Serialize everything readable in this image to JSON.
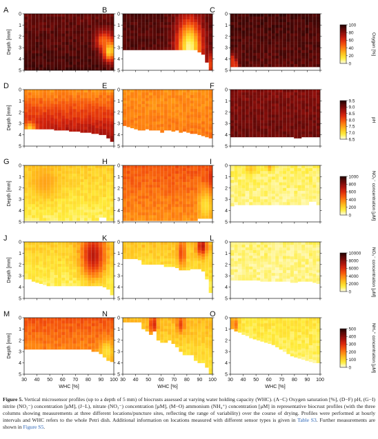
{
  "figure": {
    "caption": {
      "lead": "Figure 5.",
      "body": "Vertical microsensor profiles (up to a depth of 5 mm) of biocrusts assessed at varying water holding capacity (WHC). (A−C) Oxygen saturation [%], (D−F) pH, (G−I) nitrite (NO₂⁻) concentration [μM], (J−L), nitrate (NO₃⁻) concentration [μM], (M−O) ammonium (NH₄⁺) concentration [μM] in representative biocrust profiles (with the three columns showing measurements at three different locations/puncture sites, reflecting the range of variability) over the course of drying. Profiles were performed at hourly intervals and WHC refers to the whole Petri dish. Additional information on locations measured with different sensor types is given in",
      "ref1": "Table S3",
      "mid": ". Further measurements are shown in",
      "ref2": "Figure S5",
      "end": "."
    },
    "colors": {
      "colormap": [
        "#fffde0",
        "#ffec3c",
        "#ffc21e",
        "#ff8a12",
        "#f4520c",
        "#d8260c",
        "#a4120c",
        "#6a0a08",
        "#2c0403"
      ],
      "grid": "#ffffff"
    }
  },
  "chart_data": [
    {
      "panel": "A",
      "type": "heatmap",
      "variable": "oxygen",
      "xlabel": "",
      "ylabel": "Depth [mm]",
      "xlim": [
        30,
        100
      ],
      "ylim": [
        0,
        5
      ],
      "grid": true,
      "x": [
        30,
        33,
        36,
        39,
        42,
        45,
        48,
        51,
        54,
        57,
        60,
        63,
        66,
        69,
        72,
        75,
        78,
        81,
        84,
        87,
        90,
        93,
        96,
        99
      ],
      "depth_extent_mm": [
        5,
        5,
        5,
        5,
        5,
        5,
        5,
        5,
        5,
        5,
        5,
        5,
        5,
        5,
        5,
        5,
        5,
        5,
        5,
        5,
        5,
        5,
        5,
        5
      ],
      "level_surface": 0.88,
      "level_deep": 0.95,
      "level_min": 0,
      "hotspots": [
        {
          "x": 97,
          "depth": 3.2,
          "level": 0.1,
          "rx": 5,
          "ry": 1.0
        },
        {
          "x": 92,
          "depth": 2.4,
          "level": 0.45,
          "rx": 6,
          "ry": 0.8
        }
      ]
    },
    {
      "panel": "B",
      "type": "heatmap",
      "variable": "oxygen",
      "xlabel": "",
      "ylabel": "",
      "xlim": [
        30,
        100
      ],
      "ylim": [
        0,
        5
      ],
      "grid": true,
      "x": [
        30,
        33,
        36,
        39,
        42,
        45,
        48,
        51,
        54,
        57,
        60,
        63,
        66,
        69,
        72,
        75,
        78,
        81,
        84,
        87,
        90,
        93,
        96,
        99
      ],
      "depth_extent_mm": [
        3.2,
        3.2,
        3.2,
        3.2,
        3.2,
        3.2,
        3.2,
        3.2,
        3.2,
        3.2,
        3.2,
        3.2,
        3.2,
        3.2,
        3.2,
        3.2,
        3.2,
        3.2,
        3.2,
        3.2,
        3.4,
        3.6,
        4.3,
        5.0
      ],
      "level_surface": 0.92,
      "level_deep": 0.92,
      "level_min": 0,
      "hotspots": [
        {
          "x": 82,
          "depth": 3.0,
          "level": 0.05,
          "rx": 10,
          "ry": 2.5
        },
        {
          "x": 99,
          "depth": 4.5,
          "level": 0.55,
          "rx": 3,
          "ry": 1.0
        }
      ]
    },
    {
      "panel": "C",
      "type": "heatmap",
      "variable": "oxygen",
      "xlabel": "",
      "ylabel": "",
      "xlim": [
        30,
        100
      ],
      "ylim": [
        0,
        5
      ],
      "grid": true,
      "x": [
        30,
        33,
        36,
        39,
        42,
        45,
        48,
        51,
        54,
        57,
        60,
        63,
        66,
        69,
        72,
        75,
        78,
        81,
        84,
        87,
        90,
        93,
        96,
        99
      ],
      "depth_extent_mm": [
        4.7,
        4.7,
        4.7,
        4.7,
        4.7,
        4.7,
        4.7,
        4.7,
        4.7,
        4.7,
        4.7,
        4.7,
        4.7,
        4.7,
        4.7,
        4.7,
        4.7,
        4.7,
        4.7,
        4.7,
        4.7,
        4.7,
        4.7,
        4.7
      ],
      "level_surface": 0.95,
      "level_deep": 0.9,
      "level_min": 0.6,
      "hotspots": [
        {
          "x": 30,
          "depth": 4.7,
          "level": 0.05,
          "rx": 3,
          "ry": 0.8
        }
      ]
    },
    {
      "panel": "D",
      "type": "heatmap",
      "variable": "pH",
      "xlabel": "",
      "ylabel": "Depth [mm]",
      "xlim": [
        30,
        100
      ],
      "ylim": [
        0,
        5
      ],
      "grid": true,
      "x": [
        30,
        33,
        36,
        39,
        42,
        45,
        48,
        51,
        54,
        57,
        60,
        63,
        66,
        69,
        72,
        75,
        78,
        81,
        84,
        87,
        90,
        93,
        96,
        99
      ],
      "depth_extent_mm": [
        3.5,
        3.5,
        3.5,
        3.5,
        3.5,
        3.5,
        3.5,
        3.5,
        3.6,
        3.6,
        3.6,
        3.6,
        3.7,
        3.7,
        3.7,
        3.8,
        3.8,
        3.8,
        3.9,
        3.9,
        4.0,
        4.0,
        4.3,
        4.6
      ],
      "level_surface": 0.35,
      "level_deep": 0.85,
      "level_min": 0,
      "hotspots": [
        {
          "x": 33,
          "depth": 3.4,
          "level": 0.22,
          "rx": 5,
          "ry": 0.5
        }
      ]
    },
    {
      "panel": "E",
      "type": "heatmap",
      "variable": "pH",
      "xlabel": "",
      "ylabel": "",
      "xlim": [
        30,
        100
      ],
      "ylim": [
        0,
        5
      ],
      "grid": true,
      "x": [
        30,
        33,
        36,
        39,
        42,
        45,
        48,
        51,
        54,
        57,
        60,
        63,
        66,
        69,
        72,
        75,
        78,
        81,
        84,
        87,
        90,
        93,
        96,
        99
      ],
      "depth_extent_mm": [
        3.2,
        3.3,
        3.4,
        3.5,
        3.6,
        3.6,
        3.5,
        3.6,
        3.6,
        3.6,
        3.8,
        3.6,
        3.6,
        3.7,
        3.6,
        3.8,
        3.7,
        3.8,
        3.9,
        3.9,
        4.0,
        4.1,
        4.2,
        4.3
      ],
      "level_surface": 0.36,
      "level_deep": 0.42,
      "level_min": 0.15,
      "hotspots": []
    },
    {
      "panel": "F",
      "type": "heatmap",
      "variable": "pH",
      "xlabel": "",
      "ylabel": "",
      "xlim": [
        30,
        100
      ],
      "ylim": [
        0,
        5
      ],
      "grid": true,
      "x": [
        30,
        33,
        36,
        39,
        42,
        45,
        48,
        51,
        54,
        57,
        60,
        63,
        66,
        69,
        72,
        75,
        78,
        81,
        84,
        87,
        90,
        93,
        96,
        99
      ],
      "depth_extent_mm": [
        4.2,
        4.2,
        4.2,
        4.2,
        4.2,
        4.2,
        4.2,
        4.2,
        4.2,
        4.2,
        4.2,
        4.2,
        4.2,
        4.2,
        4.2,
        4.2,
        4.2,
        4.3,
        4.3,
        4.2,
        4.2,
        4.2,
        4.2,
        4.2
      ],
      "level_surface": 0.82,
      "level_deep": 0.88,
      "level_min": 0.6,
      "hotspots": []
    },
    {
      "panel": "G",
      "type": "heatmap",
      "variable": "nitrite",
      "xlabel": "",
      "ylabel": "Depth [mm]",
      "xlim": [
        30,
        100
      ],
      "ylim": [
        0,
        5
      ],
      "grid": true,
      "x": [
        30,
        33,
        36,
        39,
        42,
        45,
        48,
        51,
        54,
        57,
        60,
        63,
        66,
        69,
        72,
        75,
        78,
        81,
        84,
        87,
        90,
        93,
        96,
        99
      ],
      "depth_extent_mm": [
        4.9,
        4.9,
        4.9,
        4.9,
        4.9,
        4.9,
        4.9,
        4.9,
        4.9,
        4.9,
        4.9,
        4.9,
        4.9,
        4.9,
        4.9,
        4.9,
        4.9,
        4.9,
        4.9,
        4.9,
        4.6,
        4.6,
        4.9,
        4.9
      ],
      "level_surface": 0.22,
      "level_deep": 0.1,
      "level_min": 0,
      "hotspots": [
        {
          "x": 45,
          "depth": 1.5,
          "level": 0.32,
          "rx": 12,
          "ry": 1.5
        }
      ]
    },
    {
      "panel": "H",
      "type": "heatmap",
      "variable": "nitrite",
      "xlabel": "",
      "ylabel": "",
      "xlim": [
        30,
        100
      ],
      "ylim": [
        0,
        5
      ],
      "grid": true,
      "x": [
        30,
        33,
        36,
        39,
        42,
        45,
        48,
        51,
        54,
        57,
        60,
        63,
        66,
        69,
        72,
        75,
        78,
        81,
        84,
        87,
        90,
        93,
        96,
        99
      ],
      "depth_extent_mm": [
        4.9,
        4.9,
        4.9,
        4.9,
        4.9,
        4.9,
        4.9,
        4.9,
        4.9,
        4.9,
        4.9,
        4.9,
        4.9,
        4.9,
        4.9,
        4.9,
        4.9,
        4.9,
        4.9,
        4.9,
        4.7,
        4.7,
        4.7,
        4.7
      ],
      "level_surface": 0.5,
      "level_deep": 0.36,
      "level_min": 0.1,
      "hotspots": [
        {
          "x": 95,
          "depth": 3.5,
          "level": 0.15,
          "rx": 6,
          "ry": 1.2
        },
        {
          "x": 99,
          "depth": 1.0,
          "level": 0.6,
          "rx": 2,
          "ry": 0.8
        }
      ]
    },
    {
      "panel": "I",
      "type": "heatmap",
      "variable": "nitrite",
      "xlabel": "",
      "ylabel": "",
      "xlim": [
        30,
        100
      ],
      "ylim": [
        0,
        5
      ],
      "grid": true,
      "x": [
        30,
        33,
        36,
        39,
        42,
        45,
        48,
        51,
        54,
        57,
        60,
        63,
        66,
        69,
        72,
        75,
        78,
        81,
        84,
        87,
        90,
        93,
        96,
        99
      ],
      "depth_extent_mm": [
        3.6,
        3.5,
        3.5,
        3.5,
        3.5,
        3.5,
        3.5,
        3.5,
        3.5,
        3.5,
        3.5,
        3.5,
        3.5,
        3.5,
        3.5,
        3.5,
        3.5,
        3.5,
        3.5,
        3.5,
        3.5,
        3.2,
        3.2,
        3.5
      ],
      "level_surface": 0.1,
      "level_deep": 0.05,
      "level_min": 0,
      "hotspots": [
        {
          "x": 45,
          "depth": 0.3,
          "level": 0.25,
          "rx": 5,
          "ry": 0.5
        },
        {
          "x": 60,
          "depth": 0.2,
          "level": 0.3,
          "rx": 3,
          "ry": 0.3
        }
      ]
    },
    {
      "panel": "J",
      "type": "heatmap",
      "variable": "nitrate",
      "xlabel": "",
      "ylabel": "Depth [mm]",
      "xlim": [
        30,
        100
      ],
      "ylim": [
        0,
        5
      ],
      "grid": true,
      "x": [
        30,
        33,
        36,
        39,
        42,
        45,
        48,
        51,
        54,
        57,
        60,
        63,
        66,
        69,
        72,
        75,
        78,
        81,
        84,
        87,
        90,
        93,
        96,
        99
      ],
      "depth_extent_mm": [
        3.3,
        3.3,
        3.5,
        3.6,
        3.7,
        3.8,
        3.9,
        3.9,
        3.9,
        3.9,
        3.9,
        3.9,
        3.9,
        3.9,
        3.9,
        3.9,
        3.9,
        3.9,
        3.9,
        3.9,
        3.9,
        4.0,
        4.2,
        4.7
      ],
      "level_surface": 0.22,
      "level_deep": 0.06,
      "level_min": 0,
      "hotspots": [
        {
          "x": 84,
          "depth": 1.2,
          "level": 0.7,
          "rx": 10,
          "ry": 2.0
        }
      ]
    },
    {
      "panel": "K",
      "type": "heatmap",
      "variable": "nitrate",
      "xlabel": "",
      "ylabel": "",
      "xlim": [
        30,
        100
      ],
      "ylim": [
        0,
        5
      ],
      "grid": true,
      "x": [
        30,
        33,
        36,
        39,
        42,
        45,
        48,
        51,
        54,
        57,
        60,
        63,
        66,
        69,
        72,
        75,
        78,
        81,
        84,
        87,
        90,
        93,
        96,
        99
      ],
      "depth_extent_mm": [
        1.5,
        1.5,
        1.5,
        1.5,
        1.6,
        2.0,
        2.0,
        2.0,
        2.0,
        2.0,
        2.0,
        2.2,
        2.2,
        2.2,
        2.3,
        2.5,
        2.5,
        2.5,
        2.4,
        2.4,
        2.4,
        2.6,
        3.3,
        4.5
      ],
      "level_surface": 0.25,
      "level_deep": 0.08,
      "level_min": 0,
      "hotspots": [
        {
          "x": 76,
          "depth": 1.0,
          "level": 0.55,
          "rx": 3,
          "ry": 1.2
        },
        {
          "x": 92,
          "depth": 0.4,
          "level": 0.72,
          "rx": 4,
          "ry": 0.8
        }
      ]
    },
    {
      "panel": "L",
      "type": "heatmap",
      "variable": "nitrate",
      "xlabel": "",
      "ylabel": "",
      "xlim": [
        30,
        100
      ],
      "ylim": [
        0,
        5
      ],
      "grid": true,
      "x": [
        30,
        33,
        36,
        39,
        42,
        45,
        48,
        51,
        54,
        57,
        60,
        63,
        66,
        69,
        72,
        75,
        78,
        81,
        84,
        87,
        90,
        93,
        96,
        99
      ],
      "depth_extent_mm": [
        3.4,
        3.4,
        3.4,
        3.4,
        3.4,
        3.4,
        3.4,
        3.4,
        3.5,
        3.5,
        3.5,
        3.5,
        3.5,
        3.5,
        3.5,
        3.5,
        3.6,
        3.6,
        3.5,
        3.5,
        3.5,
        3.5,
        3.6,
        3.7
      ],
      "level_surface": 0.08,
      "level_deep": 0.05,
      "level_min": 0,
      "hotspots": []
    },
    {
      "panel": "M",
      "type": "heatmap",
      "variable": "ammonium",
      "xlabel": "WHC [%]",
      "ylabel": "Depth [mm]",
      "xlim": [
        30,
        100
      ],
      "ylim": [
        0,
        5
      ],
      "grid": true,
      "x": [
        30,
        33,
        36,
        39,
        42,
        45,
        48,
        51,
        54,
        57,
        60,
        63,
        66,
        69,
        72,
        75,
        78,
        81,
        84,
        87,
        90,
        93,
        96,
        99
      ],
      "depth_extent_mm": [
        2.8,
        2.8,
        2.8,
        2.8,
        2.8,
        2.8,
        2.8,
        2.8,
        2.8,
        2.8,
        2.8,
        2.8,
        2.8,
        2.8,
        2.8,
        2.8,
        2.8,
        2.8,
        3.0,
        3.0,
        3.2,
        3.5,
        3.8,
        3.9
      ],
      "level_surface": 0.5,
      "level_deep": 0.32,
      "level_min": 0.1,
      "hotspots": [
        {
          "x": 95,
          "depth": 3.0,
          "level": 0.15,
          "rx": 6,
          "ry": 1.0
        }
      ]
    },
    {
      "panel": "N",
      "type": "heatmap",
      "variable": "ammonium",
      "xlabel": "WHC [%]",
      "ylabel": "",
      "xlim": [
        30,
        100
      ],
      "ylim": [
        0,
        5
      ],
      "grid": true,
      "x": [
        30,
        33,
        36,
        39,
        42,
        45,
        48,
        51,
        54,
        57,
        60,
        63,
        66,
        69,
        72,
        75,
        78,
        81,
        84,
        87,
        90,
        93,
        96,
        99
      ],
      "depth_extent_mm": [
        0.4,
        0.4,
        0.4,
        0.4,
        0.4,
        1.0,
        1.2,
        1.5,
        1.2,
        2.0,
        2.2,
        2.2,
        2.0,
        2.3,
        2.6,
        3.0,
        3.3,
        3.3,
        3.3,
        3.8,
        4.0,
        4.0,
        4.4,
        5.0
      ],
      "level_surface": 0.28,
      "level_deep": 0.12,
      "level_min": 0,
      "hotspots": [
        {
          "x": 53,
          "depth": 0.6,
          "level": 0.65,
          "rx": 3,
          "ry": 0.8
        },
        {
          "x": 75,
          "depth": 0.6,
          "level": 0.55,
          "rx": 3,
          "ry": 0.7
        }
      ]
    },
    {
      "panel": "O",
      "type": "heatmap",
      "variable": "ammonium",
      "xlabel": "WHC [%]",
      "ylabel": "",
      "xlim": [
        30,
        100
      ],
      "ylim": [
        0,
        5
      ],
      "grid": true,
      "x": [
        30,
        33,
        36,
        39,
        42,
        45,
        48,
        51,
        54,
        57,
        60,
        63,
        66,
        69,
        72,
        75,
        78,
        81,
        84,
        87,
        90,
        93,
        96,
        99
      ],
      "depth_extent_mm": [
        1.0,
        1.2,
        1.3,
        1.5,
        1.6,
        1.8,
        1.9,
        2.0,
        2.1,
        2.2,
        2.3,
        2.4,
        2.6,
        2.8,
        3.0,
        3.2,
        3.4,
        3.5,
        3.6,
        3.7,
        3.8,
        3.9,
        4.0,
        4.0
      ],
      "level_surface": 0.15,
      "level_deep": 0.06,
      "level_min": 0,
      "hotspots": [
        {
          "x": 32,
          "depth": 0.6,
          "level": 0.45,
          "rx": 3,
          "ry": 0.7
        }
      ]
    }
  ],
  "colorbars": [
    {
      "row": 0,
      "label": "Oxygen [%]",
      "ticks": [
        "0",
        "20",
        "40",
        "60",
        "80",
        "100"
      ],
      "min": 0,
      "max": 100
    },
    {
      "row": 1,
      "label": "pH",
      "ticks": [
        "6.5",
        "7.0",
        "7.5",
        "8.0",
        "8.5",
        "9.0",
        "9.5"
      ],
      "min": 6.5,
      "max": 9.5
    },
    {
      "row": 2,
      "label": "NO₂⁻ concentration [μM]",
      "ticks": [
        "0",
        "200",
        "400",
        "600",
        "800",
        "1000"
      ],
      "min": 0,
      "max": 1000
    },
    {
      "row": 3,
      "label": "NO₃⁻ concentration [μM]",
      "ticks": [
        "0",
        "2000",
        "4000",
        "6000",
        "8000",
        "10000"
      ],
      "min": 0,
      "max": 10000
    },
    {
      "row": 4,
      "label": "NH₄⁺ concentration [μM]",
      "ticks": [
        "0",
        "100",
        "200",
        "300",
        "400",
        "500"
      ],
      "min": 0,
      "max": 500
    }
  ],
  "axes": {
    "depth_ticks": [
      "0",
      "1",
      "2",
      "3",
      "4",
      "5"
    ],
    "whc_ticks": [
      "30",
      "40",
      "50",
      "60",
      "70",
      "80",
      "90",
      "100"
    ]
  }
}
